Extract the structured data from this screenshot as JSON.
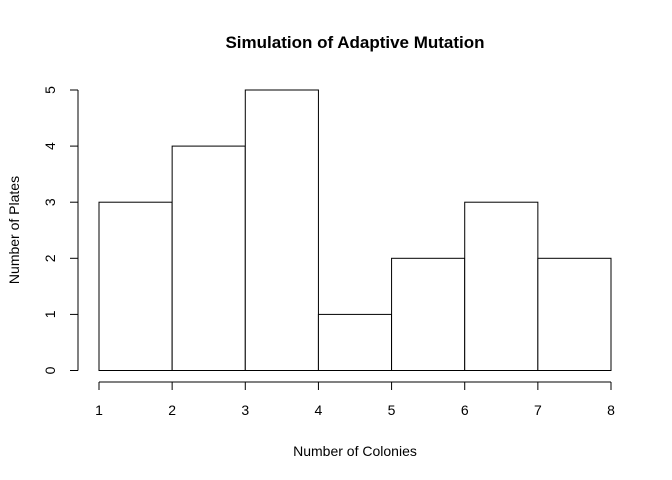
{
  "chart_data": {
    "type": "bar",
    "title": "Simulation of Adaptive Mutation",
    "xlabel": "Number of Colonies",
    "ylabel": "Number of Plates",
    "bins": [
      {
        "start": 1,
        "end": 2,
        "count": 3
      },
      {
        "start": 2,
        "end": 3,
        "count": 4
      },
      {
        "start": 3,
        "end": 4,
        "count": 5
      },
      {
        "start": 4,
        "end": 5,
        "count": 1
      },
      {
        "start": 5,
        "end": 6,
        "count": 2
      },
      {
        "start": 6,
        "end": 7,
        "count": 3
      },
      {
        "start": 7,
        "end": 8,
        "count": 2
      }
    ],
    "xlim": [
      1,
      8
    ],
    "ylim": [
      0,
      5
    ],
    "x_ticks": [
      1,
      2,
      3,
      4,
      5,
      6,
      7,
      8
    ],
    "y_ticks": [
      0,
      1,
      2,
      3,
      4,
      5
    ],
    "grid": false
  }
}
